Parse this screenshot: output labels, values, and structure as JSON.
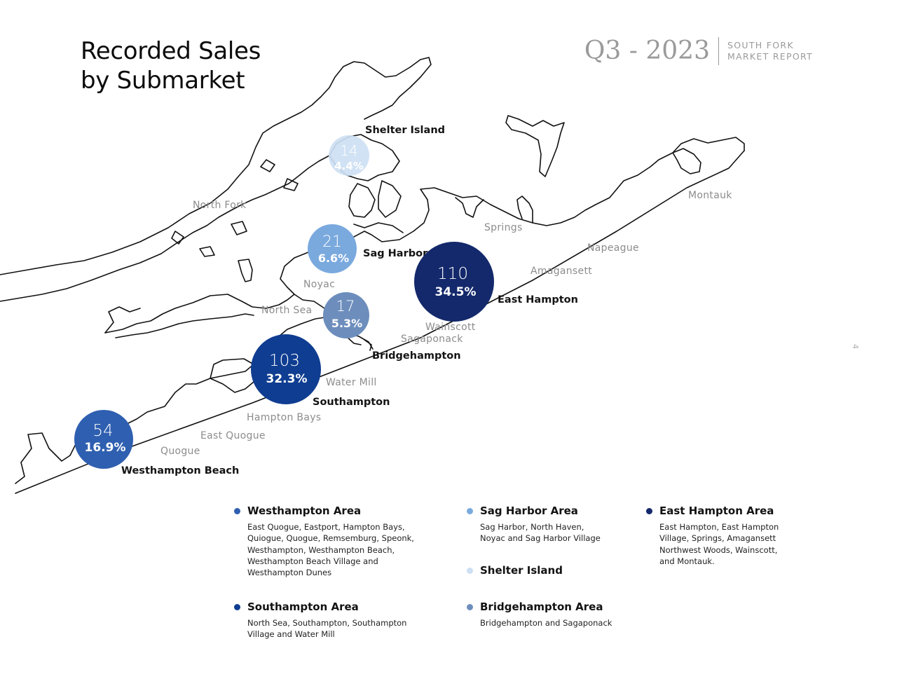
{
  "header": {
    "title_line1": "Recorded Sales",
    "title_line2": "by Submarket",
    "period": "Q3 - 2023",
    "report_line1": "SOUTH FORK",
    "report_line2": "MARKET REPORT",
    "page_number": "4"
  },
  "colors": {
    "westhampton": "#2f5fb0",
    "southampton": "#0f3d91",
    "east_hampton": "#14296b",
    "sag_harbor": "#7aa9de",
    "shelter_island": "#cddff3",
    "bridgehampton": "#6d8ebd"
  },
  "towns": {
    "north_fork": "North Fork",
    "springs": "Springs",
    "montauk": "Montauk",
    "napeague": "Napeague",
    "amagansett": "Amagansett",
    "noyac": "Noyac",
    "north_sea": "North Sea",
    "wainscott": "Wainscott",
    "sagaponack": "Sagaponack",
    "water_mill": "Water Mill",
    "hampton_bays": "Hampton Bays",
    "east_quogue": "East Quogue",
    "quogue": "Quogue"
  },
  "bubbles": {
    "shelter_island": {
      "count": "14",
      "pct": "4.4%",
      "label": "Shelter Island"
    },
    "sag_harbor": {
      "count": "21",
      "pct": "6.6%",
      "label": "Sag Harbor"
    },
    "east_hampton": {
      "count": "110",
      "pct": "34.5%",
      "label": "East Hampton"
    },
    "bridgehampton": {
      "count": "17",
      "pct": "5.3%",
      "label": "Bridgehampton"
    },
    "southampton": {
      "count": "103",
      "pct": "32.3%",
      "label": "Southampton"
    },
    "westhampton": {
      "count": "54",
      "pct": "16.9%",
      "label": "Westhampton Beach"
    }
  },
  "legend": {
    "westhampton": {
      "title": "Westhampton Area",
      "desc": "East Quogue, Eastport, Hampton Bays,\nQuiogue, Quogue, Remsemburg, Speonk,\nWesthampton, Westhampton Beach,\nWesthampton Beach Village and\nWesthampton Dunes"
    },
    "southampton": {
      "title": "Southampton Area",
      "desc": "North Sea, Southampton, Southampton\nVillage and Water Mill"
    },
    "sag_harbor": {
      "title": "Sag Harbor Area",
      "desc": "Sag Harbor, North Haven,\nNoyac and Sag Harbor Village"
    },
    "shelter_island": {
      "title": "Shelter Island",
      "desc": ""
    },
    "bridgehampton": {
      "title": "Bridgehampton Area",
      "desc": "Bridgehampton and Sagaponack"
    },
    "east_hampton": {
      "title": "East Hampton Area",
      "desc": "East Hampton, East Hampton\nVillage, Springs, Amagansett\nNorthwest Woods, Wainscott,\nand Montauk."
    }
  }
}
